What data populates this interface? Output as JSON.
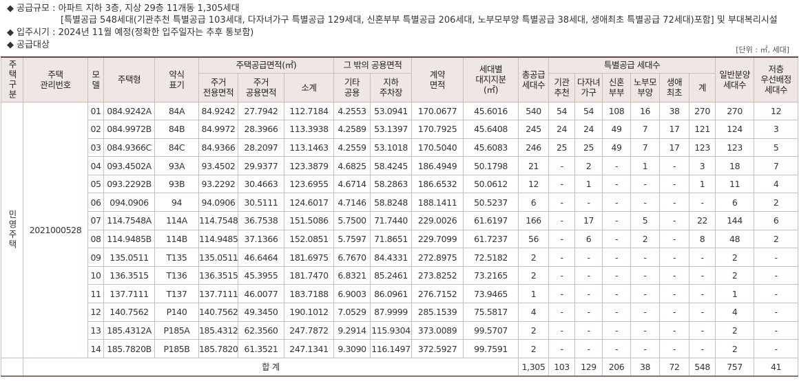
{
  "info": {
    "scale": "◆ 공급규모 : 아파트 지하 3층, 지상 29층 11개동 1,305세대",
    "special": "[특별공급 548세대(기관추천 특별공급 103세대, 다자녀가구 특별공급 129세대, 신혼부부 특별공급 206세대, 노부모부양 특별공급 38세대, 생애최초 특별공급 72세대)포함] 및 부대복리시설",
    "move_in": "◆ 입주시기 : 2024년 11월 예정(정확한 입주일자는 추후 통보함)",
    "target": "◆ 공급대상",
    "unit": "[단위 : ㎡, 세대]"
  },
  "table": {
    "headers": {
      "type_group": "주택구분",
      "mgmt": "주택\n관리번호",
      "model": "모\n델",
      "house_type": "주택형",
      "abbr": "약식\n표기",
      "supply_area": "주택공급면적(㎡)",
      "excl": "주거\n전용면적",
      "common": "주거\n공용면적",
      "subtotal": "소계",
      "other_area": "그 밖의 공용면적",
      "other_common": "기타\n공용",
      "parking": "지하\n주차장",
      "contract": "계약\n면적",
      "land": "세대별\n대지지분\n(㎡)",
      "total_supply": "총공급\n세대수",
      "special": "특별공급 세대수",
      "agency": "기관\n추천",
      "multi": "다자녀\n가구",
      "newly": "신혼\n부부",
      "elderly": "노부모\n부양",
      "first": "생애\n최초",
      "sum": "계",
      "general": "일반분양\n세대수",
      "low": "저층\n우선배정\n세대수"
    },
    "house_kind": "민영주택",
    "management_no": "2021000528",
    "rows": [
      [
        "01",
        "084.9242A",
        "84A",
        "84.9242",
        "27.7942",
        "112.7184",
        "4.2553",
        "53.0941",
        "170.0677",
        "45.6016",
        "540",
        "54",
        "54",
        "108",
        "16",
        "38",
        "270",
        "270",
        "12"
      ],
      [
        "02",
        "084.9972B",
        "84B",
        "84.9972",
        "28.3966",
        "113.3938",
        "4.2589",
        "53.1397",
        "170.7925",
        "45.6408",
        "245",
        "24",
        "24",
        "49",
        "7",
        "17",
        "121",
        "124",
        "3"
      ],
      [
        "03",
        "084.9366C",
        "84C",
        "84.9366",
        "28.2097",
        "113.1463",
        "4.2559",
        "53.1018",
        "170.5040",
        "45.6083",
        "246",
        "25",
        "25",
        "49",
        "7",
        "17",
        "123",
        "123",
        "5"
      ],
      [
        "04",
        "093.4502A",
        "93A",
        "93.4502",
        "29.9377",
        "123.3879",
        "4.6825",
        "58.4245",
        "186.4949",
        "50.1798",
        "21",
        "-",
        "2",
        "-",
        "1",
        "-",
        "3",
        "18",
        "7"
      ],
      [
        "05",
        "093.2292B",
        "93B",
        "93.2292",
        "30.4663",
        "123.6955",
        "4.6714",
        "58.2863",
        "186.6532",
        "50.0612",
        "12",
        "-",
        "1",
        "-",
        "-",
        "-",
        "1",
        "11",
        "4"
      ],
      [
        "06",
        "094.0906",
        "94",
        "94.0906",
        "30.5111",
        "124.6017",
        "4.7146",
        "58.8248",
        "188.1411",
        "50.5237",
        "6",
        "-",
        "-",
        "-",
        "-",
        "-",
        "-",
        "6",
        "2"
      ],
      [
        "07",
        "114.7548A",
        "114A",
        "114.7548",
        "36.7538",
        "151.5086",
        "5.7500",
        "71.7440",
        "229.0026",
        "61.6197",
        "166",
        "-",
        "17",
        "-",
        "5",
        "-",
        "22",
        "144",
        "6"
      ],
      [
        "08",
        "114.9485B",
        "114B",
        "114.9485",
        "37.1366",
        "152.0851",
        "5.7597",
        "71.8651",
        "229.7099",
        "61.7237",
        "56",
        "-",
        "6",
        "-",
        "2",
        "-",
        "8",
        "48",
        "2"
      ],
      [
        "09",
        "135.0511",
        "T135",
        "135.0511",
        "46.6464",
        "181.6975",
        "6.7670",
        "84.4331",
        "272.8975",
        "72.5182",
        "2",
        "-",
        "-",
        "-",
        "-",
        "-",
        "-",
        "2",
        "-"
      ],
      [
        "10",
        "136.3515",
        "T136",
        "136.3515",
        "45.3955",
        "181.7470",
        "6.8321",
        "85.2461",
        "273.8252",
        "73.2165",
        "2",
        "-",
        "-",
        "-",
        "-",
        "-",
        "-",
        "2",
        "-"
      ],
      [
        "11",
        "137.7111",
        "T137",
        "137.7111",
        "46.0077",
        "183.7188",
        "6.9003",
        "86.0961",
        "276.7152",
        "73.9465",
        "1",
        "-",
        "-",
        "-",
        "-",
        "-",
        "-",
        "1",
        "-"
      ],
      [
        "12",
        "140.7562",
        "P140",
        "140.7562",
        "49.3450",
        "190.1012",
        "7.0529",
        "87.9999",
        "285.1539",
        "75.5817",
        "4",
        "-",
        "-",
        "-",
        "-",
        "-",
        "-",
        "4",
        "-"
      ],
      [
        "13",
        "185.4312A",
        "P185A",
        "185.4312",
        "62.3560",
        "247.7872",
        "9.2914",
        "115.9304",
        "373.0089",
        "99.5707",
        "2",
        "-",
        "-",
        "-",
        "-",
        "-",
        "-",
        "2",
        "-"
      ],
      [
        "14",
        "185.7820B",
        "P185B",
        "185.7820",
        "61.3521",
        "247.1341",
        "9.3090",
        "116.1497",
        "372.5927",
        "99.7591",
        "2",
        "-",
        "-",
        "-",
        "-",
        "-",
        "-",
        "2",
        "-"
      ]
    ],
    "total": {
      "label": "합 계",
      "values": [
        "1,305",
        "103",
        "129",
        "206",
        "38",
        "72",
        "548",
        "757",
        "41"
      ]
    }
  }
}
